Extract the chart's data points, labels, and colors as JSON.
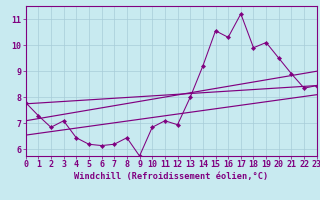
{
  "xlabel": "Windchill (Refroidissement éolien,°C)",
  "background_color": "#c8eaf0",
  "grid_color": "#a8ccd8",
  "line_color": "#800080",
  "spine_color": "#800080",
  "x_data": [
    0,
    1,
    2,
    3,
    4,
    5,
    6,
    7,
    8,
    9,
    10,
    11,
    12,
    13,
    14,
    15,
    16,
    17,
    18,
    19,
    20,
    21,
    22,
    23
  ],
  "series1": [
    7.8,
    7.3,
    6.85,
    7.1,
    6.45,
    6.2,
    6.15,
    6.2,
    6.45,
    5.75,
    6.85,
    7.1,
    6.95,
    8.0,
    9.2,
    10.55,
    10.3,
    11.2,
    9.9,
    10.1,
    9.5,
    8.9,
    8.35,
    8.45
  ],
  "trend1_x": [
    0,
    23
  ],
  "trend1_y": [
    7.75,
    8.45
  ],
  "trend2_x": [
    0,
    23
  ],
  "trend2_y": [
    7.1,
    9.0
  ],
  "trend3_x": [
    0,
    23
  ],
  "trend3_y": [
    6.55,
    8.1
  ],
  "xlim": [
    0,
    23
  ],
  "ylim": [
    5.75,
    11.5
  ],
  "yticks": [
    6,
    7,
    8,
    9,
    10,
    11
  ],
  "xticks": [
    0,
    1,
    2,
    3,
    4,
    5,
    6,
    7,
    8,
    9,
    10,
    11,
    12,
    13,
    14,
    15,
    16,
    17,
    18,
    19,
    20,
    21,
    22,
    23
  ],
  "tick_fontsize": 6.0,
  "xlabel_fontsize": 6.2
}
